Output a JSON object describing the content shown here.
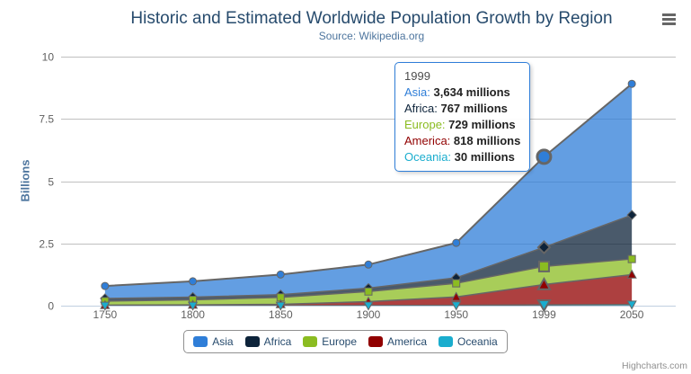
{
  "chart": {
    "title": "Historic and Estimated Worldwide Population Growth by Region",
    "subtitle": "Source: Wikipedia.org",
    "credits": "Highcharts.com"
  },
  "y_axis": {
    "title": "Billions",
    "tick_labels": [
      "0",
      "2.5",
      "5",
      "7.5",
      "10"
    ]
  },
  "x_axis": {
    "categories": [
      "1750",
      "1800",
      "1850",
      "1900",
      "1950",
      "1999",
      "2050"
    ]
  },
  "legend": {
    "items": [
      {
        "label": "Asia",
        "color": "#2f7ed8"
      },
      {
        "label": "Africa",
        "color": "#0d233a"
      },
      {
        "label": "Europe",
        "color": "#8bbc21"
      },
      {
        "label": "America",
        "color": "#910000"
      },
      {
        "label": "Oceania",
        "color": "#1aadce"
      }
    ]
  },
  "tooltip": {
    "header": "1999",
    "rows": [
      {
        "name": "Asia",
        "value": "3,634 millions",
        "color": "#2f7ed8"
      },
      {
        "name": "Africa",
        "value": "767 millions",
        "color": "#0d233a"
      },
      {
        "name": "Europe",
        "value": "729 millions",
        "color": "#8bbc21"
      },
      {
        "name": "America",
        "value": "818 millions",
        "color": "#910000"
      },
      {
        "name": "Oceania",
        "value": "30 millions",
        "color": "#1aadce"
      }
    ]
  },
  "chart_data": {
    "type": "area",
    "stacking": "normal",
    "title": "Historic and Estimated Worldwide Population Growth by Region",
    "subtitle": "Source: Wikipedia.org",
    "xlabel": "",
    "ylabel": "Billions",
    "ylim": [
      0,
      10
    ],
    "grid": true,
    "legend_position": "bottom",
    "unit": "millions",
    "hover_category": "1999",
    "categories": [
      "1750",
      "1800",
      "1850",
      "1900",
      "1950",
      "1999",
      "2050"
    ],
    "series": [
      {
        "name": "Asia",
        "color": "#2f7ed8",
        "marker": "circle",
        "values": [
          502,
          635,
          809,
          947,
          1402,
          3634,
          5268
        ]
      },
      {
        "name": "Africa",
        "color": "#0d233a",
        "marker": "diamond",
        "values": [
          106,
          107,
          111,
          133,
          221,
          767,
          1766
        ]
      },
      {
        "name": "Europe",
        "color": "#8bbc21",
        "marker": "square",
        "values": [
          163,
          203,
          276,
          408,
          547,
          729,
          628
        ]
      },
      {
        "name": "America",
        "color": "#910000",
        "marker": "triangle-up",
        "values": [
          18,
          31,
          54,
          156,
          339,
          818,
          1201
        ]
      },
      {
        "name": "Oceania",
        "color": "#1aadce",
        "marker": "triangle-down",
        "values": [
          2,
          2,
          2,
          6,
          13,
          30,
          46
        ]
      }
    ]
  }
}
